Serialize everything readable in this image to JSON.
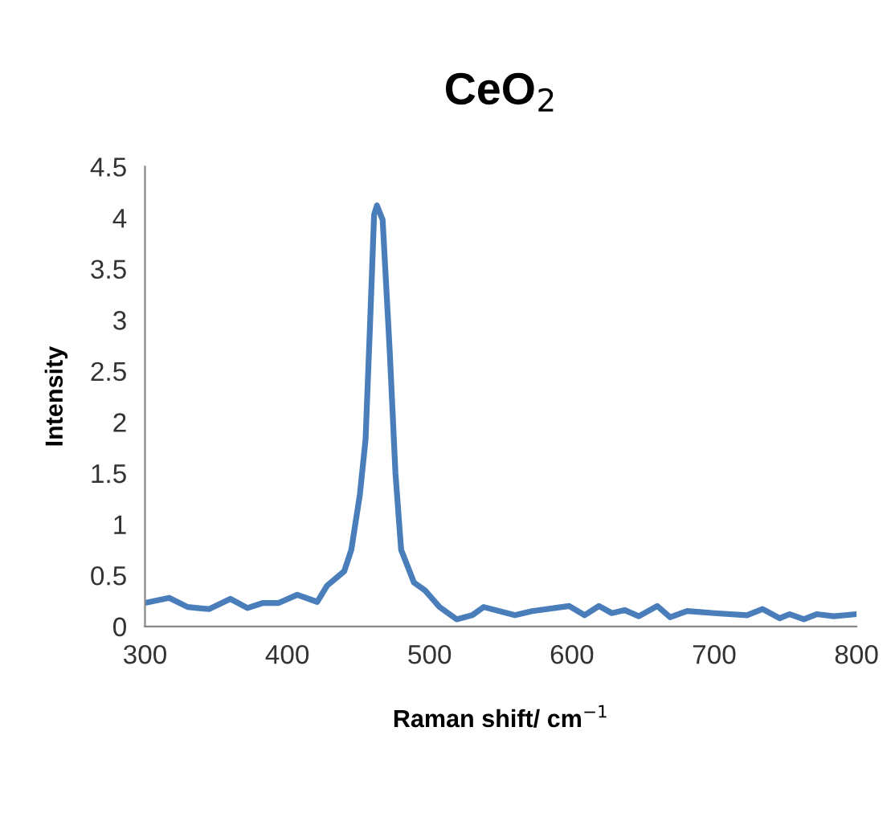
{
  "chart_data": {
    "type": "line",
    "title": "CeO$_{2}$",
    "xlabel": "Raman shift/ cm$^{−1}$",
    "ylabel": "Intensity",
    "xlim": [
      300,
      800
    ],
    "xticks": [
      300,
      400,
      500,
      600,
      700,
      800
    ],
    "ylim": [
      0,
      4.5
    ],
    "yticks": [
      0,
      0.5,
      1,
      1.5,
      2,
      2.5,
      3,
      3.5,
      4,
      4.5
    ],
    "grid": false,
    "marker": "none",
    "line_style": "solid",
    "series": [
      {
        "color": "#4a7ebb",
        "x": [
          300,
          317,
          330,
          345,
          360,
          372,
          383,
          394,
          407,
          421,
          428,
          440,
          445,
          451,
          455,
          458,
          461,
          463,
          467,
          472,
          476,
          480,
          489,
          497,
          507,
          519,
          530,
          538,
          560,
          572,
          598,
          609,
          619,
          628,
          637,
          647,
          660,
          669,
          681,
          700,
          723,
          734,
          746,
          753,
          763,
          772,
          784,
          800
        ],
        "values": [
          0.23,
          0.28,
          0.19,
          0.17,
          0.27,
          0.18,
          0.23,
          0.23,
          0.31,
          0.24,
          0.4,
          0.54,
          0.75,
          1.29,
          1.83,
          2.9,
          4.03,
          4.12,
          3.98,
          2.69,
          1.5,
          0.75,
          0.43,
          0.35,
          0.19,
          0.07,
          0.11,
          0.19,
          0.11,
          0.15,
          0.2,
          0.11,
          0.2,
          0.13,
          0.16,
          0.1,
          0.2,
          0.09,
          0.15,
          0.13,
          0.11,
          0.17,
          0.08,
          0.12,
          0.07,
          0.12,
          0.1,
          0.12
        ]
      }
    ]
  }
}
